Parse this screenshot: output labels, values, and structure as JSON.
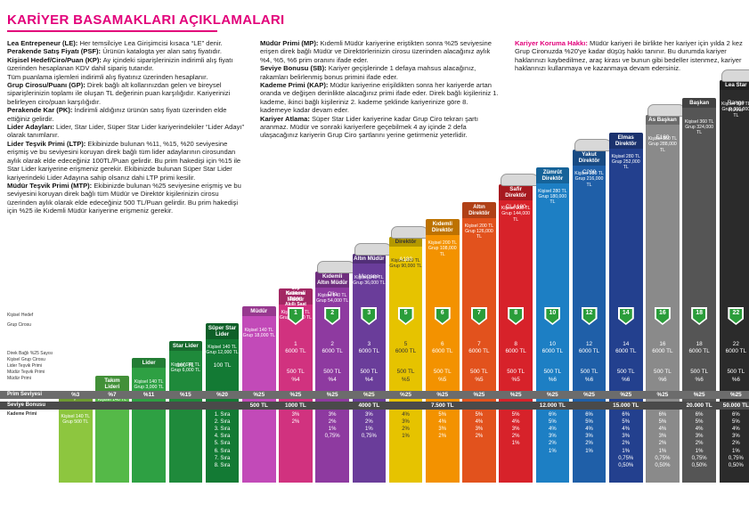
{
  "title": "KARİYER BASAMAKLARI AÇIKLAMALARI",
  "left_text": [
    {
      "term": "Lea Entrepeneur (LE):",
      "desc": " Her temsilciye Lea Girişimcisi kısaca “LE” denir."
    },
    {
      "term": "Perakende Satış Fiyatı (PSF):",
      "desc": " Ürünün katalogta yer alan satış fiyatıdır."
    },
    {
      "term": "Kişisel Hedef/Ciro/Puan (KP):",
      "desc": " Ay içindeki siparişlerinizin indirimli alış fiyatı üzerinden hesaplanan KDV dahil sipariş tutarıdır."
    },
    {
      "term": "",
      "desc": "Tüm puanlama işlemleri indirimli alış fiyatınız üzerinden hesaplanır."
    },
    {
      "term": "Grup Cirosu/Puanı (GP):",
      "desc": " Direk bağlı alt kollarınızdan gelen ve bireysel siparişlerinizin toplamı ile oluşan TL değerinin puan karşılığıdır. Kariyerinizi belirleyen ciro/puan karşılığıdır."
    },
    {
      "term": "Perakende Kar (PK):",
      "desc": " İndirimli aldığınız ürünün satış fiyatı üzerinden elde ettiğiniz gelirdir."
    },
    {
      "term": "Lider Adayları:",
      "desc": " Lider, Star Lider, Süper Star Lider kariyerindekiler “Lider Adayı” olarak tanımlanır."
    },
    {
      "term": "Lider Teşvik Primi (LTP):",
      "desc": " Ekibinizde bulunan %11, %15, %20 seviyesine erişmiş ve bu seviyesini koruyan direk bağlı tüm lider adaylarının cirosundan aylık olarak elde edeceğiniz 100TL/Puan gelirdir. Bu prim hakedişi için %15 ile Star Lider kariyerine erişmeniz gerekir. Ekibinizde bulunan Süper Star Lider kariyerindeki Lider Adayına sahip olsanız  dahi LTP primi kesilir."
    },
    {
      "term": "Müdür Teşvik Primi (MTP):",
      "desc": " Ekibinizde bulunan %25 seviyesine erişmiş ve bu seviyesini koruyan direk bağlı tüm Müdür ve Direktör kişilerinizin cirosu üzerinden aylık olarak elde edeceğiniz 500 TL/Puan gelirdir. Bu prim hakedişi için %25 ile Kıdemli Müdür kariyerine erişmeniz gerekir."
    }
  ],
  "middle_text": [
    {
      "term": "Müdür Primi (MP):",
      "desc": " Kıdemli Müdür kariyerine eriştikten sonra %25 seviyesine erişen direk bağlı Müdür ve Direktörlerinizin cirosu üzerinden alacağınız aylık %4, %5, %6 prim oranını ifade eder."
    },
    {
      "term": "Seviye Bonusu (SB):",
      "desc": " Kariyer geçişlerinde 1 defaya mahsus alacağınız, rakamları belirlenmiş bonus primini ifade eder."
    },
    {
      "term": "Kademe Primi (KAP):",
      "desc": " Müdür kariyerine erişildikten sonra her kariyerde artan oranda ve değişen derinlikte alacağınız primi ifade eder. Direk bağlı kişileriniz 1. kademe, ikinci bağlı kişileriniz 2. kademe şeklinde kariyerinize göre 8. kademeye kadar devam eder."
    },
    {
      "term": "Kariyer Atlama:",
      "desc": " Süper Star Lider kariyerine kadar Grup Ciro tekrarı şartı aranmaz. Müdür ve sonraki kariyerlere geçebilmek 4 ay içinde 2 defa ulaşacağınız kariyerin Grup Ciro şartlarını yerine getirmeniz yeterlidir."
    }
  ],
  "right_text": {
    "term": "Kariyer Koruma Hakkı:",
    "desc": " Müdür kariyeri ile birlikte her kariyer için yılda 2 kez Grup Cironuzda %20'ye kadar düşüş hakkı tanınır. Bu durumda kariyer haklarınızı kaybedilmez, araç kirası ve bunun gibi bedeller istenmez, kariyer haklarınızı kullanmaya ve kazanmaya devam edersiniz."
  },
  "row_labels": {
    "hedef": "Kişisel Hedef",
    "grup": "Grup Cirosu",
    "direk": "Direk Bağlı %25 Sayısı",
    "kgc": "Kişisel Grup Cirosu",
    "ltp": "Lider Teşvik Primi",
    "mtp": "Müdür Teşvik Primi",
    "mp": "Müdür Primi",
    "prim": "Prim Seviyesi",
    "sb": "Seviye Bonusu",
    "kademe": "Kademe Primi"
  },
  "ranks": [
    "1. Sıra",
    "2. Sıra",
    "3. Sıra",
    "4. Sıra",
    "5. Sıra",
    "6. Sıra",
    "7. Sıra",
    "8. Sıra"
  ],
  "levels": [
    {
      "name": "Girişimci",
      "color": "#8dc63f",
      "goal": "Kişisel 140 TL\nGrup 500 TL",
      "prim": "%3",
      "sb": "",
      "kp": []
    },
    {
      "name": "Takım Lideri",
      "color": "#55b948",
      "goal": "Kişisel 140 TL\nGrup 1,500 TL",
      "prim": "%7",
      "sb": "",
      "kp": []
    },
    {
      "name": "Lider",
      "color": "#2ea043",
      "goal": "Kişisel 140 TL\nGrup 3,000 TL",
      "prim": "%11",
      "sb": "",
      "kp": []
    },
    {
      "name": "Star Lider",
      "color": "#1f8a3b",
      "goal": "Kişisel 140 TL\nGrup 6,000 TL",
      "prim": "%15",
      "sb": "",
      "ltp": "100 TL",
      "kp": []
    },
    {
      "name": "Süper Star Lider",
      "color": "#137a34",
      "goal": "Kişisel 140 TL\nGrup 12,000 TL",
      "prim": "%20",
      "sb": "",
      "ltp": "100 TL",
      "kp": []
    },
    {
      "name": "Müdür",
      "color": "#c24ab8",
      "goal": "Kişisel 140 TL\nGrup 18,000 TL",
      "prim": "%25",
      "sb": "500 TL",
      "kp": []
    },
    {
      "name": "Kıdemli Müdür",
      "color": "#d1327f",
      "goal": "Kişisel 140 TL\nGrup 18,000 TL",
      "badge": "1",
      "direk": "1\n6000 TL",
      "mtp": "500 TL",
      "mp": "%4",
      "prim": "%25",
      "sb": "1000 TL",
      "kp": [
        "3%",
        "2%"
      ],
      "promo": "Teknoloji\nPaketi\nCep\nTelefonu\nTablet\nAkıllı Saat"
    },
    {
      "name": "Kıdemli Altın Müdür",
      "color": "#8e3aa0",
      "goal": "Kişisel 140 TL\nGrup 54,000 TL",
      "badge": "2",
      "direk": "2\n6000 TL",
      "mtp": "500 TL",
      "mp": "%4",
      "prim": "%25",
      "sb": "",
      "kp": [
        "3%",
        "2%",
        "1%",
        "0,75%"
      ],
      "car": "Clio"
    },
    {
      "name": "Altın Müdür",
      "color": "#6a3d9a",
      "goal": "Kişisel 140 TL\nGrup 36,000 TL",
      "badge": "3",
      "direk": "3\n6000 TL",
      "mtp": "500 TL",
      "mp": "%4",
      "prim": "%25",
      "sb": "4000 TL",
      "kp": [
        "3%",
        "2%",
        "1%",
        "0,75%"
      ],
      "car": "Megane"
    },
    {
      "name": "Direktör",
      "color": "#e6c300",
      "goal": "Kişisel 200 TL\nGrup 90,000 TL",
      "badge": "5",
      "direk": "5\n6000 TL",
      "mtp": "500 TL",
      "mp": "%5",
      "prim": "%25",
      "sb": "",
      "kp": [
        "4%",
        "3%",
        "2%",
        "1%"
      ],
      "car": "A180"
    },
    {
      "name": "Kıdemli Direktör",
      "color": "#f39200",
      "goal": "Kişisel 200 TL\nGrup 108,000 TL",
      "badge": "6",
      "direk": "6\n6000 TL",
      "mtp": "500 TL",
      "mp": "%5",
      "prim": "%25",
      "sb": "7.500 TL",
      "kp": [
        "5%",
        "4%",
        "3%",
        "2%"
      ]
    },
    {
      "name": "Altın Direktör",
      "color": "#e2521d",
      "goal": "Kişisel 200 TL\nGrup 126,000 TL",
      "badge": "7",
      "direk": "7\n6000 TL",
      "mtp": "500 TL",
      "mp": "%5",
      "prim": "%25",
      "sb": "",
      "kp": [
        "5%",
        "4%",
        "3%",
        "2%"
      ]
    },
    {
      "name": "Safir Direktör",
      "color": "#d7222a",
      "goal": "Kişisel 200 TL\nGrup 144,000 TL",
      "badge": "8",
      "direk": "8\n6000 TL",
      "mtp": "500 TL",
      "mp": "%5",
      "prim": "%25",
      "sb": "",
      "kp": [
        "5%",
        "4%",
        "3%",
        "2%",
        "1%"
      ],
      "car": "CLA180"
    },
    {
      "name": "Zümrüt Direktör",
      "color": "#1d7fc4",
      "goal": "Kişisel 280 TL\nGrup 180,000 TL",
      "badge": "10",
      "direk": "10\n6000 TL",
      "mtp": "500 TL",
      "mp": "%6",
      "prim": "%25",
      "sb": "12.000 TL",
      "kp": [
        "6%",
        "5%",
        "4%",
        "3%",
        "2%",
        "1%"
      ]
    },
    {
      "name": "Yakut Direktör",
      "color": "#1f5fa8",
      "goal": "Kişisel 280 TL\nGrup 216,000 TL",
      "badge": "12",
      "direk": "12\n6000 TL",
      "mtp": "500 TL",
      "mp": "%6",
      "prim": "%25",
      "sb": "",
      "kp": [
        "6%",
        "5%",
        "4%",
        "3%",
        "2%",
        "1%"
      ],
      "car": "C200"
    },
    {
      "name": "Elmas Direktör",
      "color": "#23408e",
      "goal": "Kişisel 280 TL\nGrup 252,000 TL",
      "badge": "14",
      "direk": "14\n6000 TL",
      "mtp": "500 TL",
      "mp": "%6",
      "prim": "%25",
      "sb": "15.000 TL",
      "kp": [
        "6%",
        "5%",
        "4%",
        "3%",
        "2%",
        "1%",
        "0,75%",
        "0,50%"
      ]
    },
    {
      "name": "As Başkan",
      "color": "#8a8a8a",
      "goal": "Kişisel 360 TL\nGrup 288,000 TL",
      "badge": "16",
      "direk": "16\n6000 TL",
      "mtp": "500 TL",
      "mp": "%6",
      "prim": "%25",
      "sb": "",
      "kp": [
        "6%",
        "5%",
        "4%",
        "3%",
        "2%",
        "1%",
        "0,75%",
        "0,50%"
      ],
      "car": "E180"
    },
    {
      "name": "Başkan",
      "color": "#555555",
      "goal": "Kişisel 360 TL\nGrup 324,000 TL",
      "badge": "18",
      "direk": "18\n6000 TL",
      "mtp": "500 TL",
      "mp": "%6",
      "prim": "%25",
      "sb": "20.000 TL",
      "kp": [
        "6%",
        "5%",
        "4%",
        "3%",
        "2%",
        "1%",
        "0,75%",
        "0,50%"
      ]
    },
    {
      "name": "Lea Star",
      "color": "#2b2b2b",
      "goal": "Kişisel 500 TL\nGrup 396,000 TL",
      "badge": "22",
      "direk": "22\n6000 TL",
      "mtp": "500 TL",
      "mp": "%6",
      "prim": "%25",
      "sb": "50.000 TL",
      "kp": [
        "6%",
        "5%",
        "4%",
        "3%",
        "2%",
        "1%",
        "0,75%",
        "0,50%"
      ],
      "car": "Range Rover"
    }
  ]
}
